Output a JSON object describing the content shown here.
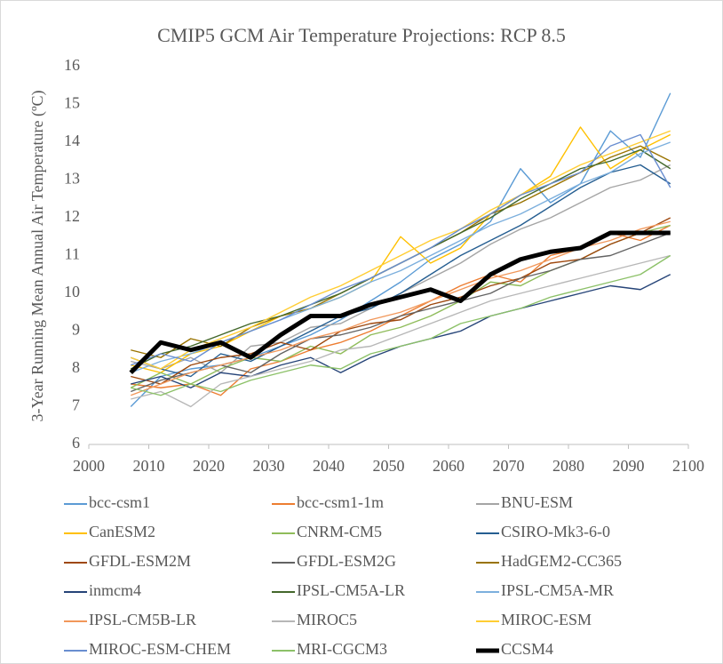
{
  "chart_data": {
    "type": "line",
    "title": "CMIP5 GCM Air Temperature Projections: RCP 8.5",
    "y_label": "3-Year Running Mean Annual Air Temperature (ºC)",
    "xlim": [
      2000,
      2100
    ],
    "xticks": [
      2000,
      2010,
      2020,
      2030,
      2040,
      2050,
      2060,
      2070,
      2080,
      2090,
      2100
    ],
    "ylim": [
      6,
      16
    ],
    "yticks": [
      6,
      7,
      8,
      9,
      10,
      11,
      12,
      13,
      14,
      15,
      16
    ],
    "grid": false,
    "legend": "bottom",
    "x": [
      2007,
      2012,
      2017,
      2022,
      2027,
      2032,
      2037,
      2042,
      2047,
      2052,
      2057,
      2062,
      2067,
      2072,
      2077,
      2082,
      2087,
      2092,
      2097
    ],
    "series": [
      {
        "name": "bcc-csm1",
        "color": "#5b9bd5",
        "values": [
          7.0,
          7.8,
          8.0,
          8.1,
          8.3,
          8.6,
          8.9,
          9.3,
          9.8,
          10.3,
          10.9,
          11.3,
          11.9,
          13.3,
          12.4,
          12.9,
          14.3,
          13.6,
          15.3
        ]
      },
      {
        "name": "bcc-csm1-1m",
        "color": "#ed7d31",
        "values": [
          7.6,
          7.5,
          7.6,
          7.3,
          8.0,
          8.2,
          8.5,
          8.7,
          9.0,
          9.4,
          9.8,
          10.2,
          10.5,
          10.3,
          11.0,
          11.2,
          11.6,
          11.4,
          11.8
        ]
      },
      {
        "name": "BNU-ESM",
        "color": "#a5a5a5",
        "values": [
          8.2,
          8.0,
          8.3,
          7.9,
          8.6,
          8.7,
          9.1,
          9.2,
          9.6,
          10.0,
          10.4,
          10.8,
          11.3,
          11.7,
          12.0,
          12.4,
          12.8,
          13.0,
          13.4
        ]
      },
      {
        "name": "CanESM2",
        "color": "#ffc000",
        "values": [
          8.1,
          7.9,
          8.4,
          8.6,
          9.0,
          9.4,
          9.6,
          9.9,
          10.3,
          11.5,
          10.8,
          11.2,
          12.1,
          12.6,
          13.1,
          14.4,
          13.3,
          13.8,
          14.2
        ]
      },
      {
        "name": "CNRM-CM5",
        "color": "#8fbc5a",
        "values": [
          7.5,
          7.9,
          7.6,
          8.0,
          8.3,
          8.2,
          8.6,
          8.4,
          8.9,
          9.1,
          9.4,
          9.8,
          10.3,
          10.2,
          10.6,
          10.9,
          11.3,
          11.6,
          11.8
        ]
      },
      {
        "name": "CSIRO-Mk3-6-0",
        "color": "#255e91",
        "values": [
          8.3,
          8.0,
          7.8,
          8.4,
          8.2,
          8.6,
          9.0,
          9.4,
          9.6,
          10.0,
          10.5,
          11.0,
          11.4,
          11.8,
          12.3,
          12.8,
          13.2,
          13.4,
          12.9
        ]
      },
      {
        "name": "GFDL-ESM2M",
        "color": "#9e480e",
        "values": [
          7.8,
          7.6,
          8.1,
          8.3,
          8.4,
          8.7,
          8.5,
          9.0,
          9.2,
          9.3,
          9.7,
          9.9,
          10.2,
          10.4,
          10.8,
          10.9,
          11.3,
          11.6,
          12.0
        ]
      },
      {
        "name": "GFDL-ESM2G",
        "color": "#636363",
        "values": [
          7.4,
          7.7,
          7.9,
          8.1,
          7.9,
          8.4,
          8.8,
          8.9,
          9.1,
          9.4,
          9.6,
          9.8,
          10.0,
          10.4,
          10.6,
          10.9,
          11.0,
          11.3,
          11.6
        ]
      },
      {
        "name": "HadGEM2-CC365",
        "color": "#997300",
        "values": [
          8.5,
          8.3,
          8.8,
          8.6,
          9.1,
          9.4,
          9.6,
          10.0,
          10.4,
          10.8,
          11.2,
          11.6,
          12.1,
          12.4,
          12.8,
          13.2,
          13.6,
          13.9,
          13.5
        ]
      },
      {
        "name": "inmcm4",
        "color": "#264478",
        "values": [
          7.6,
          7.8,
          7.5,
          7.9,
          7.8,
          8.1,
          8.3,
          7.9,
          8.3,
          8.6,
          8.8,
          9.0,
          9.4,
          9.6,
          9.8,
          10.0,
          10.2,
          10.1,
          10.5
        ]
      },
      {
        "name": "IPSL-CM5A-LR",
        "color": "#43682b",
        "values": [
          8.0,
          8.4,
          8.6,
          8.9,
          9.2,
          9.4,
          9.7,
          10.0,
          10.4,
          10.8,
          11.2,
          11.6,
          12.0,
          12.5,
          12.9,
          13.3,
          13.5,
          13.8,
          13.3
        ]
      },
      {
        "name": "IPSL-CM5A-MR",
        "color": "#7cafdd",
        "values": [
          7.9,
          8.2,
          8.4,
          8.7,
          9.0,
          9.3,
          9.6,
          9.9,
          10.3,
          10.6,
          11.0,
          11.4,
          11.8,
          12.1,
          12.5,
          12.9,
          13.2,
          13.7,
          14.0
        ]
      },
      {
        "name": "IPSL-CM5B-LR",
        "color": "#f1975a",
        "values": [
          7.3,
          7.6,
          7.9,
          8.1,
          8.3,
          8.5,
          8.8,
          9.0,
          9.3,
          9.5,
          9.8,
          10.1,
          10.4,
          10.6,
          10.9,
          11.2,
          11.4,
          11.7,
          11.9
        ]
      },
      {
        "name": "MIROC5",
        "color": "#b7b7b7",
        "values": [
          7.2,
          7.4,
          7.0,
          7.6,
          7.8,
          8.0,
          8.2,
          8.5,
          8.6,
          8.9,
          9.2,
          9.5,
          9.8,
          10.0,
          10.2,
          10.4,
          10.6,
          10.8,
          11.0
        ]
      },
      {
        "name": "MIROC-ESM",
        "color": "#ffcd33",
        "values": [
          8.3,
          8.0,
          8.5,
          8.8,
          9.1,
          9.5,
          9.9,
          10.2,
          10.6,
          11.0,
          11.4,
          11.7,
          12.2,
          12.6,
          13.0,
          13.4,
          13.7,
          14.0,
          14.3
        ]
      },
      {
        "name": "MIROC-ESM-CHEM",
        "color": "#698ed0",
        "values": [
          8.1,
          8.4,
          8.2,
          8.7,
          9.0,
          9.3,
          9.7,
          10.1,
          10.4,
          10.8,
          11.2,
          11.7,
          12.1,
          12.6,
          12.9,
          13.2,
          13.9,
          14.2,
          12.8
        ]
      },
      {
        "name": "MRI-CGCM3",
        "color": "#8cc168",
        "values": [
          7.5,
          7.3,
          7.6,
          7.4,
          7.7,
          7.9,
          8.1,
          8.0,
          8.4,
          8.6,
          8.8,
          9.2,
          9.4,
          9.6,
          9.9,
          10.1,
          10.3,
          10.5,
          11.0
        ]
      },
      {
        "name": "CCSM4",
        "color": "#000000",
        "values": [
          7.9,
          8.7,
          8.5,
          8.7,
          8.3,
          8.9,
          9.4,
          9.4,
          9.7,
          9.9,
          10.1,
          9.8,
          10.5,
          10.9,
          11.1,
          11.2,
          11.6,
          11.6,
          11.6
        ]
      }
    ]
  }
}
